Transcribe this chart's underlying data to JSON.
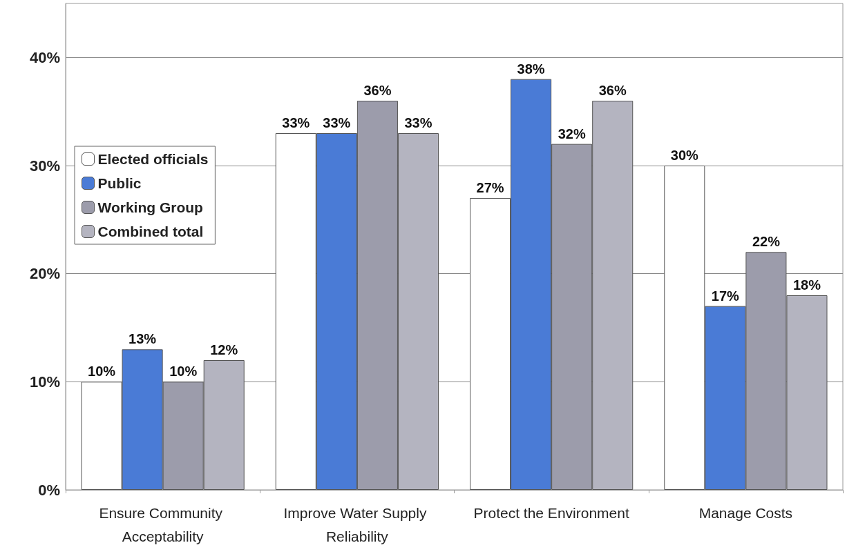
{
  "chart_data": {
    "type": "bar",
    "categories": [
      "Ensure Community Acceptability",
      "Improve Water Supply Reliability",
      "Protect the Environment",
      "Manage Costs"
    ],
    "series": [
      {
        "name": "Elected officials",
        "color": "#ffffff",
        "values": [
          10,
          33,
          27,
          30
        ],
        "value_labels": [
          "10%",
          "33%",
          "27%",
          "30%"
        ]
      },
      {
        "name": "Public",
        "color": "#4a7bd6",
        "values": [
          13,
          33,
          38,
          17
        ],
        "value_labels": [
          "13%",
          "33%",
          "38%",
          "17%"
        ]
      },
      {
        "name": "Working Group",
        "color": "#9c9cab",
        "values": [
          10,
          36,
          32,
          22
        ],
        "value_labels": [
          "10%",
          "36%",
          "32%",
          "22%"
        ]
      },
      {
        "name": "Combined total",
        "color": "#b4b4c0",
        "values": [
          12,
          33,
          36,
          18
        ],
        "value_labels": [
          "12%",
          "33%",
          "36%",
          "18%"
        ]
      }
    ],
    "ylim": [
      0,
      45
    ],
    "yticks": [
      {
        "value": 0,
        "label": "0%"
      },
      {
        "value": 10,
        "label": "10%"
      },
      {
        "value": 20,
        "label": "20%"
      },
      {
        "value": 30,
        "label": "30%"
      },
      {
        "value": 40,
        "label": "40%"
      }
    ],
    "grid": "y",
    "legend": "top left"
  }
}
